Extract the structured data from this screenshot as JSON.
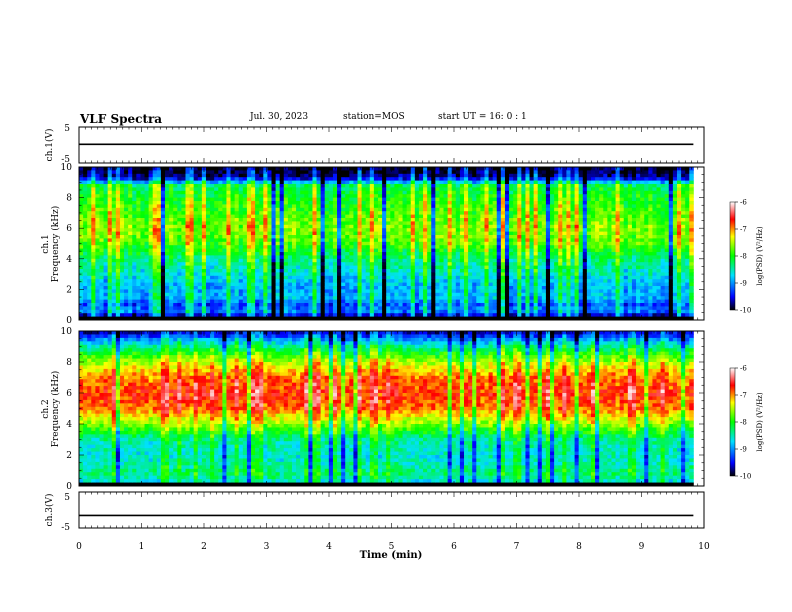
{
  "header": {
    "title": "VLF Spectra",
    "date": "Jul. 30, 2023",
    "station": "station=MOS",
    "start": "start UT =  16: 0 : 1"
  },
  "chart_data": [
    {
      "type": "line",
      "panel": "ch1-waveform",
      "ylabel": "ch.1(V)",
      "ylim": [
        -5,
        5
      ],
      "xlim": [
        0,
        10
      ],
      "y_tick_labels": [
        "5",
        "-5"
      ],
      "series": [
        {
          "values_note": "",
          "x": [
            0,
            9.83
          ],
          "y": [
            0.2,
            0.2
          ]
        }
      ]
    },
    {
      "type": "heatmap",
      "panel": "ch1-spectrogram",
      "ylabel": "ch.1\nFrequency (kHz)",
      "ylim": [
        0,
        10
      ],
      "xlim": [
        0,
        10
      ],
      "y_ticks": [
        0,
        2,
        4,
        6,
        8,
        10
      ],
      "colorbar": {
        "label": "log(PSD) (V²/Hz)",
        "range": [
          -10,
          -6
        ],
        "ticks": [
          "-6",
          "-7",
          "-8",
          "-9",
          "-10"
        ]
      },
      "profile_freq_khz": [
        0,
        0.3,
        0.6,
        1.0,
        1.5,
        2,
        3,
        4,
        5,
        6,
        7,
        8,
        8.8,
        9.3,
        10
      ],
      "profile_logpsd": [
        -10,
        -9.6,
        -9.0,
        -9.2,
        -8.8,
        -8.9,
        -8.6,
        -8.3,
        -7.8,
        -7.6,
        -7.8,
        -8.0,
        -8.2,
        -9.7,
        -10
      ]
    },
    {
      "type": "heatmap",
      "panel": "ch2-spectrogram",
      "ylabel": "ch.2\nFrequency (kHz)",
      "ylim": [
        0,
        10
      ],
      "xlim": [
        0,
        10
      ],
      "y_ticks": [
        0,
        2,
        4,
        6,
        8,
        10
      ],
      "colorbar": {
        "label": "log(PSD) (V²/Hz)",
        "range": [
          -10,
          -6
        ],
        "ticks": [
          "-6",
          "-7",
          "-8",
          "-9",
          "-10"
        ]
      },
      "profile_freq_khz": [
        0,
        0.3,
        0.8,
        1.5,
        2,
        3,
        4,
        5,
        6,
        7,
        8,
        9,
        9.6,
        10
      ],
      "profile_logpsd": [
        -10,
        -8.6,
        -8.3,
        -8.5,
        -8.6,
        -8.4,
        -7.6,
        -6.9,
        -6.7,
        -6.9,
        -7.5,
        -8.4,
        -9.2,
        -9.7
      ]
    },
    {
      "type": "line",
      "panel": "ch3-waveform",
      "ylabel": "ch.3(V)",
      "ylim": [
        -5,
        5
      ],
      "xlim": [
        0,
        10
      ],
      "y_tick_labels": [
        "5",
        "-5"
      ],
      "series": [
        {
          "x": [
            0,
            9.83
          ],
          "y": [
            -1.5,
            -1.5
          ]
        }
      ]
    }
  ],
  "x_axis": {
    "label": "Time (min)",
    "ticks": [
      0,
      1,
      2,
      3,
      4,
      5,
      6,
      7,
      8,
      9,
      10
    ],
    "data_end_min": 9.83
  }
}
